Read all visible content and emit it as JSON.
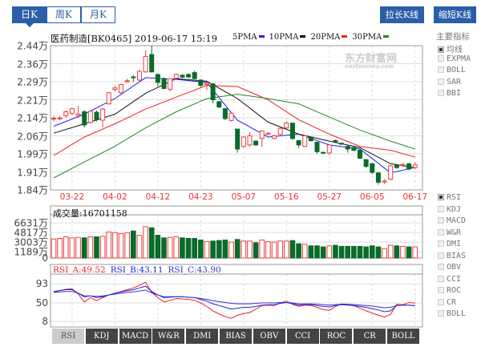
{
  "period_tabs": [
    {
      "label": "日K",
      "active": true
    },
    {
      "label": "周K",
      "active": false
    },
    {
      "label": "月K",
      "active": false
    }
  ],
  "buttons": {
    "lengthen": "拉长K线",
    "shorten": "缩短K线"
  },
  "header": {
    "title": "医药制造[BK0465] 2019-06-17 15:19"
  },
  "ma_legend": [
    {
      "label": "5PMA",
      "color": "#2222ee"
    },
    {
      "label": "10PMA",
      "color": "#111111"
    },
    {
      "label": "20PMA",
      "color": "#ee2222"
    },
    {
      "label": "30PMA",
      "color": "#228822"
    }
  ],
  "watermark": {
    "text": "东方财富网",
    "sub": "eastmoney.com"
  },
  "main_indicators": {
    "title": "主要指标",
    "items": [
      {
        "label": "均线",
        "checked": true
      },
      {
        "label": "EXPMA",
        "checked": false
      },
      {
        "label": "BOLL",
        "checked": false
      },
      {
        "label": "SAR",
        "checked": false
      },
      {
        "label": "BBI",
        "checked": false
      }
    ]
  },
  "sub_indicators": [
    {
      "label": "RSI",
      "checked": true
    },
    {
      "label": "KDJ",
      "checked": false
    },
    {
      "label": "MACD",
      "checked": false
    },
    {
      "label": "W&R",
      "checked": false
    },
    {
      "label": "DMI",
      "checked": false
    },
    {
      "label": "BIAS",
      "checked": false
    },
    {
      "label": "OBV",
      "checked": false
    },
    {
      "label": "CCI",
      "checked": false
    },
    {
      "label": "ROC",
      "checked": false
    },
    {
      "label": "CR",
      "checked": false
    },
    {
      "label": "BOLL",
      "checked": false
    }
  ],
  "indicator_tabs": [
    {
      "label": "RSI",
      "active": true
    },
    {
      "label": "KDJ"
    },
    {
      "label": "MACD"
    },
    {
      "label": "W&R"
    },
    {
      "label": "DMI"
    },
    {
      "label": "BIAS"
    },
    {
      "label": "OBV"
    },
    {
      "label": "CCI"
    },
    {
      "label": "ROC"
    },
    {
      "label": "CR"
    },
    {
      "label": "BOLL"
    }
  ],
  "colors": {
    "up": "#e84040",
    "down": "#0a6b2a",
    "accent": "#2b5ea8",
    "date": "#e33333"
  },
  "chart_data": [
    {
      "type": "candlestick",
      "ylim": [
        1.84,
        2.44
      ],
      "unit": "万",
      "y_ticks": [
        "2.44万",
        "2.36万",
        "2.29万",
        "2.21万",
        "2.14万",
        "2.06万",
        "1.99万",
        "1.91万",
        "1.84万"
      ],
      "y_tick_values": [
        2.44,
        2.365,
        2.29,
        2.215,
        2.14,
        2.065,
        1.99,
        1.915,
        1.84
      ],
      "x_ticks": [
        {
          "label": "03-22",
          "index": 3
        },
        {
          "label": "04-02",
          "index": 10
        },
        {
          "label": "04-12",
          "index": 17
        },
        {
          "label": "04-23",
          "index": 24
        },
        {
          "label": "05-07",
          "index": 31
        },
        {
          "label": "05-16",
          "index": 38
        },
        {
          "label": "05-27",
          "index": 45
        },
        {
          "label": "06-05",
          "index": 52
        },
        {
          "label": "06-17",
          "index": 59
        }
      ],
      "ohlc_order": "open,close,high,low",
      "candles": [
        [
          2.135,
          2.138,
          2.148,
          2.125
        ],
        [
          2.136,
          2.139,
          2.148,
          2.128
        ],
        [
          2.148,
          2.165,
          2.17,
          2.142
        ],
        [
          2.159,
          2.178,
          2.182,
          2.15
        ],
        [
          2.15,
          2.156,
          2.19,
          2.14
        ],
        [
          2.165,
          2.11,
          2.172,
          2.1
        ],
        [
          2.121,
          2.167,
          2.172,
          2.115
        ],
        [
          2.163,
          2.132,
          2.17,
          2.125
        ],
        [
          2.13,
          2.176,
          2.182,
          2.1
        ],
        [
          2.198,
          2.244,
          2.248,
          2.195
        ],
        [
          2.258,
          2.264,
          2.272,
          2.25
        ],
        [
          2.244,
          2.278,
          2.282,
          2.238
        ],
        [
          2.29,
          2.294,
          2.302,
          2.286
        ],
        [
          2.31,
          2.307,
          2.318,
          2.29
        ],
        [
          2.297,
          2.333,
          2.34,
          2.29
        ],
        [
          2.331,
          2.395,
          2.42,
          2.328
        ],
        [
          2.403,
          2.331,
          2.44,
          2.328
        ],
        [
          2.32,
          2.287,
          2.325,
          2.27
        ],
        [
          2.303,
          2.262,
          2.308,
          2.258
        ],
        [
          2.259,
          2.303,
          2.306,
          2.25
        ],
        [
          2.305,
          2.32,
          2.325,
          2.3
        ],
        [
          2.317,
          2.309,
          2.322,
          2.305
        ],
        [
          2.32,
          2.31,
          2.325,
          2.305
        ],
        [
          2.328,
          2.303,
          2.336,
          2.3
        ],
        [
          2.297,
          2.275,
          2.3,
          2.268
        ],
        [
          2.278,
          2.283,
          2.29,
          2.255
        ],
        [
          2.281,
          2.215,
          2.284,
          2.2
        ],
        [
          2.207,
          2.185,
          2.21,
          2.18
        ],
        [
          2.178,
          2.137,
          2.18,
          2.13
        ],
        [
          2.129,
          2.159,
          2.162,
          2.125
        ],
        [
          2.093,
          2.01,
          2.095,
          1.995
        ],
        [
          2.021,
          2.06,
          2.063,
          2.015
        ],
        [
          2.027,
          2.065,
          2.08,
          2.02
        ],
        [
          2.043,
          2.027,
          2.046,
          2.024
        ],
        [
          2.054,
          2.085,
          2.088,
          2.02
        ],
        [
          2.072,
          2.076,
          2.08,
          2.068
        ],
        [
          2.054,
          2.065,
          2.07,
          2.05
        ],
        [
          2.071,
          2.096,
          2.1,
          2.068
        ],
        [
          2.098,
          2.118,
          2.125,
          2.095
        ],
        [
          2.118,
          2.054,
          2.12,
          2.05
        ],
        [
          2.045,
          2.027,
          2.048,
          2.015
        ],
        [
          2.021,
          2.065,
          2.068,
          2.018
        ],
        [
          2.06,
          2.045,
          2.062,
          2.04
        ],
        [
          2.038,
          1.999,
          2.04,
          1.99
        ],
        [
          1.996,
          1.993,
          2.0,
          1.99
        ],
        [
          1.994,
          2.027,
          2.03,
          1.985
        ],
        [
          2.045,
          2.041,
          2.05,
          2.035
        ],
        [
          2.034,
          2.03,
          2.038,
          2.028
        ],
        [
          2.021,
          2.01,
          2.025,
          1.995
        ],
        [
          2.016,
          2.005,
          2.02,
          2.0
        ],
        [
          2.005,
          1.972,
          2.008,
          1.968
        ],
        [
          1.966,
          1.938,
          1.968,
          1.932
        ],
        [
          1.949,
          1.913,
          1.952,
          1.905
        ],
        [
          1.911,
          1.872,
          1.914,
          1.862
        ],
        [
          1.873,
          1.877,
          1.885,
          1.865
        ],
        [
          1.885,
          1.94,
          1.944,
          1.88
        ],
        [
          1.944,
          1.933,
          1.948,
          1.928
        ],
        [
          1.942,
          1.946,
          1.952,
          1.935
        ],
        [
          1.949,
          1.927,
          1.952,
          1.922
        ],
        [
          1.933,
          1.944,
          1.955,
          1.925
        ]
      ],
      "ma_index": [
        0,
        5,
        10,
        15,
        20,
        25,
        30,
        35,
        40,
        45,
        50,
        55,
        59
      ],
      "series": [
        {
          "name": "5PMA",
          "color": "#2222ee",
          "values": [
            2.105,
            2.155,
            2.22,
            2.307,
            2.3,
            2.287,
            2.13,
            2.06,
            2.072,
            2.027,
            2.01,
            1.911,
            1.933
          ]
        },
        {
          "name": "10PMA",
          "color": "#111111",
          "values": [
            2.076,
            2.115,
            2.155,
            2.242,
            2.303,
            2.292,
            2.22,
            2.122,
            2.072,
            2.043,
            2.016,
            1.949,
            1.933
          ]
        },
        {
          "name": "20PMA",
          "color": "#ee2222",
          "values": [
            1.983,
            2.06,
            2.115,
            2.176,
            2.226,
            2.275,
            2.27,
            2.215,
            2.132,
            2.072,
            2.021,
            2.005,
            1.977
          ]
        },
        {
          "name": "30PMA",
          "color": "#228822",
          "values": [
            1.89,
            1.956,
            2.022,
            2.098,
            2.165,
            2.22,
            2.238,
            2.22,
            2.198,
            2.143,
            2.089,
            2.043,
            2.01
          ]
        }
      ]
    },
    {
      "type": "bar",
      "title": "成交量",
      "title_value": "16701158",
      "unit": "万",
      "y_ticks": [
        "6631万",
        "4817万",
        "3003万",
        "1189万",
        "0"
      ],
      "y_tick_values": [
        6631,
        4817,
        3003,
        1189,
        0
      ],
      "values": [
        3600,
        3700,
        4000,
        3800,
        3900,
        3800,
        4000,
        4000,
        4100,
        4900,
        4800,
        4600,
        4800,
        5100,
        4300,
        5900,
        5700,
        4300,
        3800,
        3900,
        4000,
        3800,
        3700,
        3700,
        3400,
        3100,
        3200,
        3300,
        3400,
        3000,
        3500,
        3200,
        3200,
        2900,
        3400,
        3100,
        3000,
        3200,
        3200,
        3300,
        2700,
        2600,
        2300,
        2300,
        2100,
        2300,
        2400,
        2200,
        2200,
        2200,
        2200,
        2100,
        2300,
        2100,
        1800,
        2400,
        2300,
        2200,
        2100,
        2100
      ]
    },
    {
      "type": "line",
      "y_ticks": [
        "93",
        "50",
        "8"
      ],
      "y_tick_values": [
        93,
        50,
        8
      ],
      "series": [
        {
          "name": "RSI_A",
          "label": "RSI_A:49.52",
          "color": "#ee2222",
          "values": [
            75,
            78,
            81,
            82,
            70,
            52,
            62,
            55,
            62,
            68,
            72,
            76,
            80,
            84,
            90,
            97,
            74,
            62,
            52,
            56,
            60,
            59,
            58,
            56,
            50,
            42,
            32,
            25,
            19,
            15,
            22,
            26,
            28,
            36,
            44,
            45,
            44,
            50,
            54,
            47,
            42,
            45,
            44,
            40,
            35,
            33,
            42,
            48,
            45,
            44,
            38,
            32,
            27,
            22,
            18,
            24,
            47,
            46,
            51,
            49.52
          ]
        },
        {
          "name": "RSI_B",
          "label": "RSI_B:43.11",
          "color": "#2222dd",
          "values": [
            76,
            78,
            80,
            80,
            72,
            64,
            66,
            62,
            64,
            68,
            72,
            75,
            78,
            80,
            84,
            88,
            76,
            68,
            62,
            63,
            64,
            64,
            63,
            62,
            58,
            54,
            48,
            44,
            40,
            36,
            38,
            40,
            40,
            42,
            45,
            46,
            46,
            49,
            51,
            48,
            45,
            46,
            46,
            44,
            42,
            41,
            44,
            46,
            45,
            44,
            42,
            40,
            37,
            34,
            30,
            32,
            44,
            45,
            45,
            43.11
          ]
        },
        {
          "name": "RSI_C",
          "label": "RSI_C:43.90",
          "color": "#3333cc",
          "values": [
            74,
            75,
            76,
            76,
            72,
            66,
            66,
            65,
            66,
            68,
            70,
            72,
            74,
            75,
            77,
            79,
            73,
            68,
            64,
            64,
            64,
            64,
            63,
            62,
            60,
            58,
            55,
            53,
            51,
            49,
            48,
            48,
            48,
            49,
            50,
            50,
            50,
            51,
            51,
            50,
            48,
            48,
            48,
            47,
            46,
            45,
            46,
            47,
            47,
            46,
            45,
            44,
            43,
            41,
            39,
            40,
            44,
            45,
            45,
            43.9
          ]
        }
      ]
    }
  ]
}
